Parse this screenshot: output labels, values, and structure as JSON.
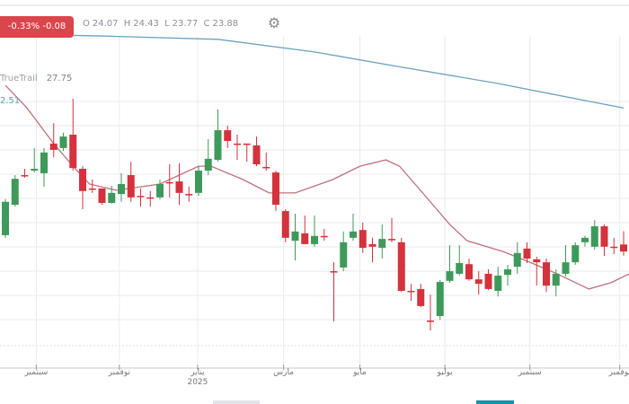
{
  "header": {
    "change_badge": "-0.33% -0.08",
    "ohlc": {
      "o_label": "O",
      "o": "24.07",
      "h_label": "H",
      "h": "24.43",
      "l_label": "L",
      "l": "23.77",
      "c_label": "C",
      "c": "23.88"
    },
    "settings_icon": "gear-icon"
  },
  "legend": {
    "name": "TrueTrail",
    "value": "27.75",
    "secondary_value": "2.51"
  },
  "colors": {
    "up": "#3e9a5a",
    "down": "#d4323c",
    "trail_line": "#6aa2c0",
    "ma_line": "#c0707a",
    "badge": "#d9464b",
    "grid": "#e8eaed"
  },
  "chart_data": {
    "type": "candlestick",
    "ohlc_fields": [
      "open",
      "high",
      "low",
      "close"
    ],
    "candles": [
      [
        24.32,
        25.29,
        24.25,
        25.22
      ],
      [
        25.14,
        25.94,
        25.09,
        25.84
      ],
      [
        25.94,
        26.11,
        25.87,
        25.92
      ],
      [
        26.06,
        26.67,
        26.01,
        26.11
      ],
      [
        25.99,
        26.67,
        25.63,
        26.55
      ],
      [
        26.79,
        27.34,
        26.42,
        26.62
      ],
      [
        26.67,
        27.08,
        26.59,
        26.98
      ],
      [
        27.03,
        28.0,
        26.06,
        26.13
      ],
      [
        26.11,
        26.18,
        25.02,
        25.51
      ],
      [
        25.58,
        25.82,
        25.46,
        25.55
      ],
      [
        25.58,
        25.58,
        25.14,
        25.19
      ],
      [
        25.19,
        25.65,
        25.17,
        25.46
      ],
      [
        25.43,
        25.99,
        25.22,
        25.7
      ],
      [
        25.94,
        26.3,
        25.22,
        25.34
      ],
      [
        25.38,
        25.58,
        25.09,
        25.36
      ],
      [
        25.34,
        25.51,
        25.09,
        25.31
      ],
      [
        25.34,
        25.82,
        25.29,
        25.7
      ],
      [
        25.75,
        26.23,
        25.34,
        25.72
      ],
      [
        25.77,
        26.26,
        25.14,
        25.46
      ],
      [
        25.43,
        25.63,
        25.22,
        25.41
      ],
      [
        25.46,
        26.18,
        25.38,
        26.06
      ],
      [
        26.06,
        26.91,
        25.94,
        26.38
      ],
      [
        26.35,
        27.71,
        26.3,
        27.15
      ],
      [
        27.15,
        27.27,
        26.67,
        26.86
      ],
      [
        26.79,
        27.03,
        26.35,
        26.76
      ],
      [
        26.79,
        26.79,
        26.3,
        26.76
      ],
      [
        26.74,
        26.98,
        26.18,
        26.23
      ],
      [
        26.16,
        26.55,
        26.06,
        26.13
      ],
      [
        26.01,
        26.06,
        24.97,
        25.14
      ],
      [
        24.97,
        25.02,
        24.13,
        24.25
      ],
      [
        24.17,
        24.9,
        23.64,
        24.42
      ],
      [
        24.37,
        24.85,
        24.08,
        24.08
      ],
      [
        24.08,
        24.85,
        24.01,
        24.3
      ],
      [
        24.3,
        24.49,
        24.17,
        24.27
      ],
      [
        23.35,
        23.59,
        22.0,
        23.33
      ],
      [
        23.45,
        24.42,
        23.35,
        24.13
      ],
      [
        24.25,
        24.9,
        24.17,
        24.42
      ],
      [
        24.46,
        24.66,
        23.84,
        23.98
      ],
      [
        24.08,
        24.25,
        23.59,
        24.01
      ],
      [
        23.98,
        24.61,
        23.69,
        24.22
      ],
      [
        24.22,
        24.78,
        24.13,
        24.2
      ],
      [
        24.13,
        24.25,
        22.79,
        22.82
      ],
      [
        22.82,
        23.01,
        22.55,
        22.79
      ],
      [
        22.87,
        23.01,
        22.38,
        22.41
      ],
      [
        22.02,
        22.72,
        21.75,
        22.0
      ],
      [
        22.14,
        23.11,
        22.04,
        23.06
      ],
      [
        23.09,
        24.05,
        23.04,
        23.35
      ],
      [
        23.28,
        24.05,
        23.23,
        23.57
      ],
      [
        23.54,
        23.69,
        23.09,
        23.13
      ],
      [
        23.13,
        23.35,
        22.72,
        23.01
      ],
      [
        23.28,
        23.4,
        22.84,
        22.87
      ],
      [
        22.82,
        23.47,
        22.67,
        23.23
      ],
      [
        23.25,
        23.52,
        22.96,
        23.4
      ],
      [
        23.47,
        24.13,
        23.28,
        23.84
      ],
      [
        23.96,
        24.13,
        23.57,
        23.69
      ],
      [
        23.67,
        23.74,
        22.96,
        23.59
      ],
      [
        23.59,
        23.69,
        22.79,
        22.96
      ],
      [
        22.96,
        23.4,
        22.67,
        23.28
      ],
      [
        23.28,
        24.05,
        23.21,
        23.59
      ],
      [
        23.59,
        24.13,
        23.52,
        24.05
      ],
      [
        24.13,
        24.3,
        24.01,
        24.25
      ],
      [
        24.01,
        24.73,
        23.93,
        24.56
      ],
      [
        24.56,
        24.61,
        23.76,
        24.01
      ],
      [
        24.01,
        24.25,
        23.81,
        23.98
      ],
      [
        24.07,
        24.43,
        23.77,
        23.88
      ]
    ],
    "lines": [
      {
        "name": "TrueTrail",
        "color": "#6aa2c0",
        "points": [
          [
            0,
            29.74
          ],
          [
            10,
            29.69
          ],
          [
            22,
            29.6
          ],
          [
            32,
            29.26
          ],
          [
            41,
            28.85
          ],
          [
            51,
            28.41
          ],
          [
            60,
            27.95
          ],
          [
            64,
            27.75
          ]
        ]
      },
      {
        "color": "#c0707a",
        "points": [
          [
            0,
            28.36
          ],
          [
            2.2,
            27.76
          ],
          [
            5,
            26.79
          ],
          [
            7,
            26.18
          ],
          [
            8.7,
            25.7
          ],
          [
            11.5,
            25.53
          ],
          [
            16,
            25.7
          ],
          [
            20,
            26.18
          ],
          [
            21.3,
            26.18
          ],
          [
            24.6,
            25.82
          ],
          [
            27.3,
            25.46
          ],
          [
            30,
            25.46
          ],
          [
            33.9,
            25.82
          ],
          [
            36.7,
            26.18
          ],
          [
            39.4,
            26.35
          ],
          [
            40.8,
            26.18
          ],
          [
            43.2,
            25.46
          ],
          [
            46,
            24.61
          ],
          [
            47.8,
            24.17
          ],
          [
            51.5,
            23.88
          ],
          [
            54.3,
            23.59
          ],
          [
            57.1,
            23.28
          ],
          [
            60.4,
            22.87
          ],
          [
            62.7,
            23.04
          ],
          [
            64.6,
            23.28
          ]
        ]
      }
    ],
    "x_ticks": [
      {
        "label": "سبتمبر",
        "bar": 3.2
      },
      {
        "label": "نوفمبر",
        "bar": 11.8
      },
      {
        "label": "يناير",
        "sub": "2025",
        "bar": 19.9
      },
      {
        "label": "مارس",
        "bar": 28.8
      },
      {
        "label": "مايو",
        "bar": 36.7
      },
      {
        "label": "يوليو",
        "bar": 45.5
      },
      {
        "label": "سبتمبر",
        "bar": 54.3
      },
      {
        "label": "نوفمبر",
        "bar": 63.6
      }
    ],
    "grid": true
  }
}
